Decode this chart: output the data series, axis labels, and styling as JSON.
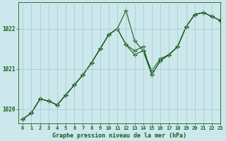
{
  "title": "Graphe pression niveau de la mer (hPa)",
  "background_color": "#cce8ec",
  "line_color": "#1a5c1a",
  "marker_color": "#1a5c1a",
  "grid_color": "#a0c8cc",
  "xlim": [
    -0.5,
    23
  ],
  "ylim": [
    1019.65,
    1022.65
  ],
  "yticks": [
    1020,
    1021,
    1022
  ],
  "xticks": [
    0,
    1,
    2,
    3,
    4,
    5,
    6,
    7,
    8,
    9,
    10,
    11,
    12,
    13,
    14,
    15,
    16,
    17,
    18,
    19,
    20,
    21,
    22,
    23
  ],
  "series": [
    {
      "x": [
        0,
        1,
        2,
        3,
        4,
        5,
        6,
        7,
        8,
        9,
        10,
        11,
        12,
        13,
        14,
        15,
        16,
        17,
        18,
        19,
        20,
        21,
        22,
        23
      ],
      "y": [
        1019.75,
        1019.9,
        1020.25,
        1020.2,
        1020.1,
        1020.35,
        1020.6,
        1020.85,
        1021.15,
        1021.5,
        1021.85,
        1022.0,
        1022.45,
        1021.7,
        1021.45,
        1020.95,
        1021.25,
        1021.35,
        1021.55,
        1022.05,
        1022.35,
        1022.4,
        1022.3,
        1022.2
      ]
    },
    {
      "x": [
        0,
        1,
        2,
        3,
        4,
        5,
        6,
        7,
        8,
        9,
        10,
        11,
        12,
        13,
        14,
        15,
        16,
        17,
        18,
        19,
        20,
        21,
        22,
        23
      ],
      "y": [
        1019.75,
        1019.9,
        1020.25,
        1020.2,
        1020.1,
        1020.35,
        1020.6,
        1020.85,
        1021.15,
        1021.5,
        1021.85,
        1022.0,
        1021.6,
        1021.45,
        1021.55,
        1020.85,
        1021.2,
        1021.35,
        1021.55,
        1022.05,
        1022.35,
        1022.4,
        1022.3,
        1022.2
      ]
    },
    {
      "x": [
        0,
        1,
        2,
        3,
        4,
        5,
        6,
        7,
        8,
        9,
        10,
        11,
        12,
        13,
        14,
        15,
        16,
        17,
        18,
        19,
        20,
        21,
        22,
        23
      ],
      "y": [
        1019.75,
        1019.9,
        1020.25,
        1020.2,
        1020.1,
        1020.35,
        1020.6,
        1020.85,
        1021.15,
        1021.5,
        1021.85,
        1022.0,
        1021.6,
        1021.35,
        1021.45,
        1020.85,
        1021.2,
        1021.35,
        1021.55,
        1022.05,
        1022.35,
        1022.4,
        1022.3,
        1022.2
      ]
    }
  ]
}
